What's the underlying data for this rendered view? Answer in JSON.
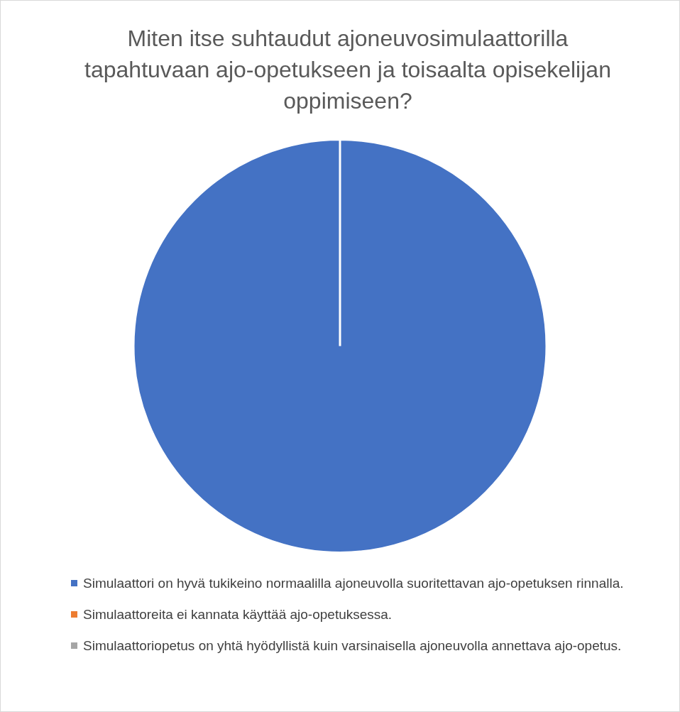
{
  "chart_data": {
    "type": "pie",
    "title": "Miten itse suhtaudut ajoneuvosimulaattorilla tapahtuvaan ajo-opetukseen ja toisaalta opisekelijan oppimiseen?",
    "categories": [
      "Simulaattori on hyvä tukikeino normaalilla ajoneuvolla suoritettavan ajo-opetuksen rinnalla.",
      "Simulaattoreita ei kannata käyttää ajo-opetuksessa.",
      "Simulaattoriopetus on yhtä hyödyllistä kuin varsinaisella ajoneuvolla annettava ajo-opetus."
    ],
    "values": [
      100,
      0,
      0
    ],
    "colors": [
      "#4472c4",
      "#ed7d31",
      "#a5a5a5"
    ],
    "legend": "bottom"
  }
}
